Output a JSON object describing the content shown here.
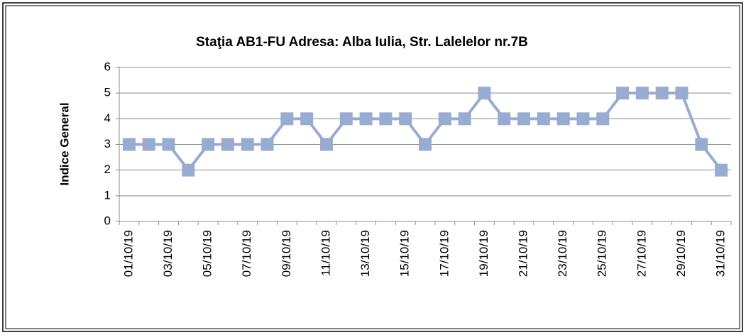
{
  "chart_data": {
    "type": "line",
    "title": "Staţia AB1-FU  Adresa: Alba Iulia, Str. Lalelelor nr.7B",
    "y_label": "Indice General",
    "categories": [
      "01/10/19",
      null,
      "03/10/19",
      null,
      "05/10/19",
      null,
      "07/10/19",
      null,
      "09/10/19",
      null,
      "11/10/19",
      null,
      "13/10/19",
      null,
      "15/10/19",
      null,
      "17/10/19",
      null,
      "19/10/19",
      null,
      "21/10/19",
      null,
      "23/10/19",
      null,
      "25/10/19",
      null,
      "27/10/19",
      null,
      "29/10/19",
      null,
      "31/10/19"
    ],
    "values": [
      3,
      3,
      3,
      2,
      3,
      3,
      3,
      3,
      4,
      4,
      3,
      4,
      4,
      4,
      4,
      3,
      4,
      4,
      5,
      4,
      4,
      4,
      4,
      4,
      4,
      5,
      5,
      5,
      5,
      3,
      2
    ],
    "color": "#98abd1",
    "ylim": [
      0,
      6
    ],
    "yticks": [
      0,
      1,
      2,
      3,
      4,
      5,
      6
    ],
    "grid": true
  }
}
